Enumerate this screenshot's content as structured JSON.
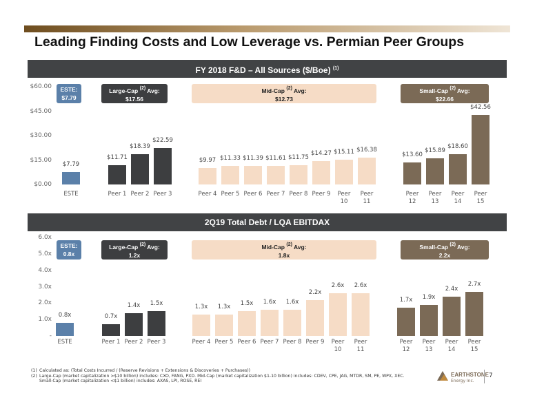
{
  "title": "Leading Finding Costs and Low Leverage vs. Permian Peer Groups",
  "chart_data": [
    {
      "type": "bar",
      "title": "FY 2018 F&D – All Sources ($/Boe)",
      "title_note": "(1)",
      "ylim": [
        0,
        60
      ],
      "yticks": [
        {
          "value": 0,
          "label": "$0.00"
        },
        {
          "value": 15,
          "label": "$15.00"
        },
        {
          "value": 30,
          "label": "$30.00"
        },
        {
          "value": 45,
          "label": "$45.00"
        },
        {
          "value": 60,
          "label": "$60.00"
        }
      ],
      "grid": false,
      "categories": [
        "ESTE",
        "Peer 1",
        "Peer 2",
        "Peer 3",
        "Peer 4",
        "Peer 5",
        "Peer 6",
        "Peer 7",
        "Peer 8",
        "Peer 9",
        "Peer 10",
        "Peer 11",
        "Peer 12",
        "Peer 13",
        "Peer 14",
        "Peer 15"
      ],
      "values": [
        7.79,
        11.71,
        18.39,
        22.59,
        9.97,
        11.33,
        11.39,
        11.61,
        11.75,
        14.27,
        15.11,
        16.38,
        13.6,
        15.89,
        18.6,
        42.56
      ],
      "value_labels": [
        "$7.79",
        "$11.71",
        "$18.39",
        "$22.59",
        "$9.97",
        "$11.33",
        "$11.39",
        "$11.61",
        "$11.75",
        "$14.27",
        "$15.11",
        "$16.38",
        "$13.60",
        "$15.89",
        "$18.60",
        "$42.56"
      ],
      "colors": [
        "#5b80a9",
        "#3d3e40",
        "#3d3e40",
        "#3d3e40",
        "#f6dcc6",
        "#f6dcc6",
        "#f6dcc6",
        "#f6dcc6",
        "#f6dcc6",
        "#f6dcc6",
        "#f6dcc6",
        "#f6dcc6",
        "#7b6a56",
        "#7b6a56",
        "#7b6a56",
        "#7b6a56"
      ],
      "groups": [
        {
          "name": "ESTE:",
          "value": "$7.79",
          "color": "#5b80a9",
          "text_color": "#ffffff"
        },
        {
          "name": "Large-Cap",
          "note": "(2)",
          "suffix": "Avg:",
          "value": "$17.56",
          "color": "#3d3e40",
          "text_color": "#ffffff"
        },
        {
          "name": "Mid-Cap",
          "note": "(2)",
          "suffix": "Avg:",
          "value": "$12.73",
          "color": "#f6dcc6",
          "text_color": "#222222"
        },
        {
          "name": "Small-Cap",
          "note": "(2)",
          "suffix": "Avg:",
          "value": "$22.66",
          "color": "#7b6a56",
          "text_color": "#ffffff"
        }
      ]
    },
    {
      "type": "bar",
      "title": "2Q19 Total Debt / LQA EBITDAX",
      "ylim": [
        0,
        6
      ],
      "yticks": [
        {
          "value": 0,
          "label": "-"
        },
        {
          "value": 1,
          "label": "1.0x"
        },
        {
          "value": 2,
          "label": "2.0x"
        },
        {
          "value": 3,
          "label": "3.0x"
        },
        {
          "value": 4,
          "label": "4.0x"
        },
        {
          "value": 5,
          "label": "5.0x"
        },
        {
          "value": 6,
          "label": "6.0x"
        }
      ],
      "grid": false,
      "categories": [
        "ESTE",
        "Peer 1",
        "Peer 2",
        "Peer 3",
        "Peer 4",
        "Peer 5",
        "Peer 6",
        "Peer 7",
        "Peer 8",
        "Peer 9",
        "Peer 10",
        "Peer 11",
        "Peer 12",
        "Peer 13",
        "Peer 14",
        "Peer 15"
      ],
      "values": [
        0.8,
        0.7,
        1.4,
        1.5,
        1.3,
        1.3,
        1.5,
        1.6,
        1.6,
        2.2,
        2.6,
        2.6,
        1.7,
        1.9,
        2.4,
        2.7
      ],
      "value_labels": [
        "0.8x",
        "0.7x",
        "1.4x",
        "1.5x",
        "1.3x",
        "1.3x",
        "1.5x",
        "1.6x",
        "1.6x",
        "2.2x",
        "2.6x",
        "2.6x",
        "1.7x",
        "1.9x",
        "2.4x",
        "2.7x"
      ],
      "colors": [
        "#5b80a9",
        "#3d3e40",
        "#3d3e40",
        "#3d3e40",
        "#f6dcc6",
        "#f6dcc6",
        "#f6dcc6",
        "#f6dcc6",
        "#f6dcc6",
        "#f6dcc6",
        "#f6dcc6",
        "#f6dcc6",
        "#7b6a56",
        "#7b6a56",
        "#7b6a56",
        "#7b6a56"
      ],
      "groups": [
        {
          "name": "ESTE:",
          "value": "0.8x",
          "color": "#5b80a9",
          "text_color": "#ffffff"
        },
        {
          "name": "Large-Cap",
          "note": "(2)",
          "suffix": "Avg:",
          "value": "1.2x",
          "color": "#3d3e40",
          "text_color": "#ffffff"
        },
        {
          "name": "Mid-Cap",
          "note": "(2)",
          "suffix": "Avg:",
          "value": "1.8x",
          "color": "#f6dcc6",
          "text_color": "#222222"
        },
        {
          "name": "Small-Cap",
          "note": "(2)",
          "suffix": "Avg:",
          "value": "2.2x",
          "color": "#7b6a56",
          "text_color": "#ffffff"
        }
      ]
    }
  ],
  "footnotes": [
    {
      "marker": "(1)",
      "text": "Calculated as: (Total Costs Incurred / (Reserve Revisions + Extensions & Discoveries + Purchases))"
    },
    {
      "marker": "(2)",
      "text": "Large-Cap (market capitalization >$10 billion) includes: CXO, FANG, PXD. Mid-Cap (market capitalization $1-10 billion) includes: CDEV, CPE, JAG, MTDR, SM, PE, WPX, XEC. Small-Cap (market capitalization <$1 billion) includes: AXAS, LPI, ROSE, REI"
    }
  ],
  "logo": {
    "name": "EARTHSTONE",
    "sub": "Energy Inc."
  },
  "page_number": "7"
}
